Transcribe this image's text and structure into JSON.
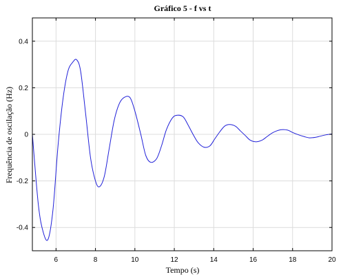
{
  "chart_data": {
    "type": "line",
    "title": "Gráfico 5 - f vs t",
    "xlabel": "Tempo (s)",
    "ylabel": "Frequência de oscilação (Hz)",
    "xlim": [
      4.8,
      20
    ],
    "ylim": [
      -0.5,
      0.5
    ],
    "xticks": [
      6,
      8,
      10,
      12,
      14,
      16,
      18,
      20
    ],
    "yticks": [
      -0.4,
      -0.2,
      0,
      0.2,
      0.4
    ],
    "xtick_labels": [
      "6",
      "8",
      "10",
      "12",
      "14",
      "16",
      "18",
      "20"
    ],
    "ytick_labels": [
      "-0.4",
      "-0.2",
      "0",
      "0.2",
      "0.4"
    ],
    "grid": true,
    "legend": "none",
    "series": [
      {
        "color": "#1f1fd8",
        "x": [
          4.8,
          5.1,
          5.35,
          5.6,
          5.85,
          6.1,
          6.35,
          6.6,
          6.85,
          7.05,
          7.25,
          7.5,
          7.75,
          8.0,
          8.2,
          8.45,
          8.7,
          8.95,
          9.2,
          9.45,
          9.75,
          10.0,
          10.3,
          10.55,
          10.8,
          11.1,
          11.35,
          11.6,
          11.9,
          12.15,
          12.45,
          12.7,
          12.95,
          13.2,
          13.5,
          13.8,
          14.05,
          14.3,
          14.55,
          14.8,
          15.1,
          15.35,
          15.6,
          15.85,
          16.15,
          16.45,
          16.7,
          16.95,
          17.2,
          17.45,
          17.75,
          18.0,
          18.3,
          18.6,
          18.85,
          19.15,
          19.4,
          19.7,
          20.0
        ],
        "values": [
          0.0,
          -0.3,
          -0.42,
          -0.45,
          -0.32,
          -0.05,
          0.15,
          0.27,
          0.31,
          0.32,
          0.27,
          0.09,
          -0.1,
          -0.2,
          -0.225,
          -0.18,
          -0.06,
          0.06,
          0.13,
          0.158,
          0.158,
          0.1,
          0.0,
          -0.09,
          -0.12,
          -0.105,
          -0.05,
          0.02,
          0.07,
          0.082,
          0.075,
          0.04,
          0.0,
          -0.035,
          -0.055,
          -0.05,
          -0.02,
          0.01,
          0.035,
          0.042,
          0.035,
          0.015,
          -0.005,
          -0.025,
          -0.032,
          -0.025,
          -0.01,
          0.005,
          0.015,
          0.02,
          0.018,
          0.008,
          -0.002,
          -0.01,
          -0.015,
          -0.013,
          -0.008,
          -0.002,
          0.002
        ]
      }
    ]
  }
}
